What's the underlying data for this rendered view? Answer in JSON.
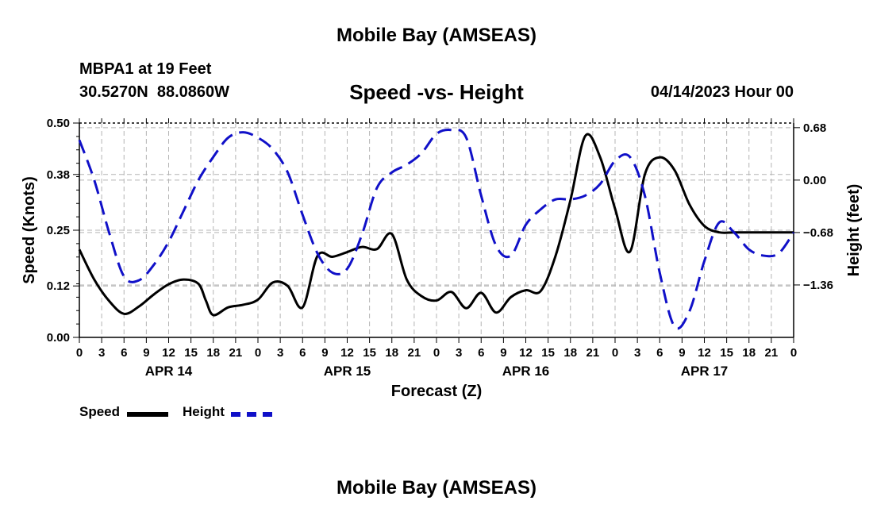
{
  "page": {
    "top_title": "Mobile Bay (AMSEAS)",
    "station": "MBPA1 at 19 Feet",
    "coords": "30.5270N  88.0860W",
    "chart_title": "Speed -vs- Height",
    "datetime": "04/14/2023 Hour 00",
    "bottom_title": "Mobile Bay (AMSEAS)"
  },
  "chart_data": {
    "type": "line",
    "title": "Speed -vs- Height",
    "xlabel": "Forecast (Z)",
    "ylabel": "Speed (Knots)",
    "y2label": "Height (feet)",
    "x_range": [
      0,
      96
    ],
    "x_tick_step": 3,
    "x_tick_labels": [
      "0",
      "3",
      "6",
      "9",
      "12",
      "15",
      "18",
      "21",
      "0",
      "3",
      "6",
      "9",
      "12",
      "15",
      "18",
      "21",
      "0",
      "3",
      "6",
      "9",
      "12",
      "15",
      "18",
      "21",
      "0",
      "3",
      "6",
      "9",
      "12",
      "15",
      "18",
      "21",
      "0"
    ],
    "date_labels": [
      {
        "label": "APR 14",
        "x": 12
      },
      {
        "label": "APR 15",
        "x": 36
      },
      {
        "label": "APR 16",
        "x": 60
      },
      {
        "label": "APR 17",
        "x": 84
      }
    ],
    "ylim": [
      0,
      0.5
    ],
    "y_ticks": [
      "0.00",
      "0.12",
      "0.25",
      "0.38",
      "0.50"
    ],
    "y2lim": [
      -2.04,
      0.74
    ],
    "y2_ticks": [
      "0.68",
      "0.00",
      "-0.68",
      "-1.36"
    ],
    "legend": {
      "placement": "bottom-left"
    },
    "series": [
      {
        "name": "Speed",
        "color": "#000000",
        "style": "solid",
        "axis": "left",
        "x": [
          0,
          2,
          4,
          6,
          8,
          10,
          12,
          14,
          16,
          17,
          18,
          20,
          22,
          24,
          26,
          28,
          30,
          32,
          34,
          36,
          38,
          40,
          42,
          44,
          46,
          48,
          50,
          52,
          54,
          56,
          58,
          60,
          62,
          64,
          66,
          68,
          70,
          72,
          74,
          76,
          78,
          80,
          82,
          84,
          86,
          88,
          90,
          92,
          94,
          96
        ],
        "values": [
          0.205,
          0.135,
          0.085,
          0.055,
          0.072,
          0.1,
          0.124,
          0.135,
          0.125,
          0.086,
          0.052,
          0.07,
          0.076,
          0.088,
          0.128,
          0.12,
          0.07,
          0.19,
          0.188,
          0.199,
          0.211,
          0.206,
          0.241,
          0.135,
          0.096,
          0.086,
          0.106,
          0.068,
          0.104,
          0.058,
          0.094,
          0.11,
          0.108,
          0.19,
          0.32,
          0.47,
          0.42,
          0.3,
          0.2,
          0.38,
          0.42,
          0.39,
          0.31,
          0.26,
          0.245,
          0.245,
          0.245,
          0.245,
          0.245,
          0.245
        ]
      },
      {
        "name": "Height",
        "color": "#1010c8",
        "style": "dashed",
        "axis": "right",
        "x": [
          0,
          2,
          4,
          6,
          8,
          10,
          12,
          14,
          16,
          18,
          20,
          22,
          24,
          26,
          28,
          30,
          32,
          34,
          36,
          38,
          40,
          42,
          44,
          46,
          48,
          50,
          52,
          54,
          56,
          58,
          60,
          62,
          64,
          66,
          68,
          70,
          72,
          74,
          76,
          78,
          80,
          82,
          84,
          86,
          88,
          90,
          92,
          94,
          96
        ],
        "values": [
          0.52,
          0.0,
          -0.68,
          -1.25,
          -1.3,
          -1.1,
          -0.8,
          -0.4,
          0.0,
          0.3,
          0.55,
          0.62,
          0.55,
          0.4,
          0.1,
          -0.45,
          -0.95,
          -1.2,
          -1.15,
          -0.7,
          -0.1,
          0.1,
          0.2,
          0.35,
          0.6,
          0.65,
          0.55,
          -0.2,
          -0.85,
          -0.98,
          -0.58,
          -0.38,
          -0.25,
          -0.25,
          -0.2,
          -0.05,
          0.25,
          0.3,
          -0.2,
          -1.2,
          -1.9,
          -1.7,
          -1.05,
          -0.55,
          -0.68,
          -0.9,
          -0.98,
          -0.95,
          -0.68
        ]
      }
    ]
  }
}
